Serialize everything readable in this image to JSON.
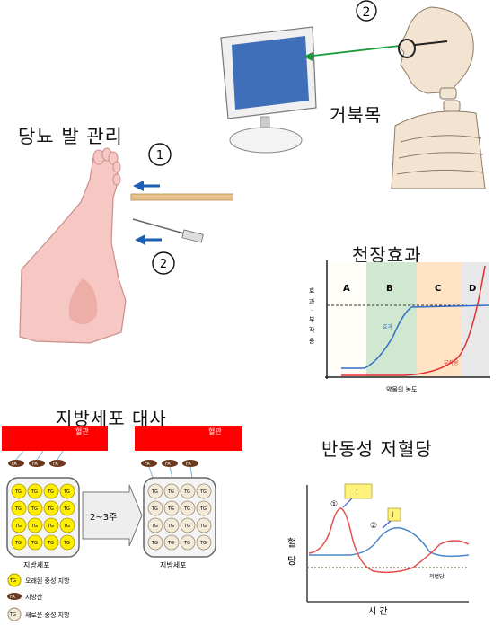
{
  "foot": {
    "title": "당뇨 발 관리",
    "marker1": "1",
    "marker2": "2"
  },
  "neck": {
    "marker": "2",
    "title": "거북목"
  },
  "ceiling": {
    "title": "천장효과",
    "regions": [
      "A",
      "B",
      "C",
      "D"
    ],
    "ylabel_chars": [
      "효",
      "과",
      "·",
      "부",
      "작",
      "용"
    ],
    "xlabel": "약물의 농도",
    "series": [
      {
        "name": "효과",
        "color": "#2f6fc9"
      },
      {
        "name": "부작용",
        "color": "#e0302f"
      }
    ],
    "region_colors": [
      "#ffffff",
      "#c8e6c9",
      "#ffe2bf",
      "#e6e6e6"
    ]
  },
  "fat": {
    "title": "지방세포 대사",
    "vessel": "혈관",
    "fa": "FA",
    "tg": "TG",
    "arrow": "2~3주",
    "cell_label": "지방세포",
    "legend": [
      {
        "label": "오래된 중성 지방",
        "icon": "TG"
      },
      {
        "label": "지방산",
        "icon": "FA"
      },
      {
        "label": "새로운 중성 지방",
        "icon": "TG"
      }
    ],
    "colors": {
      "vessel": "#ff0000",
      "old_tg": "#ffee00",
      "new_tg": "#f3ead8",
      "fa": "#6b3a1f"
    }
  },
  "hypo": {
    "title": "반동성 저혈당",
    "ylabel": [
      "혈",
      "당"
    ],
    "xlabel": "시 간",
    "marker1": "①",
    "marker2": "②",
    "tag1": "I",
    "tag2": "I",
    "line_label": "저혈당"
  }
}
